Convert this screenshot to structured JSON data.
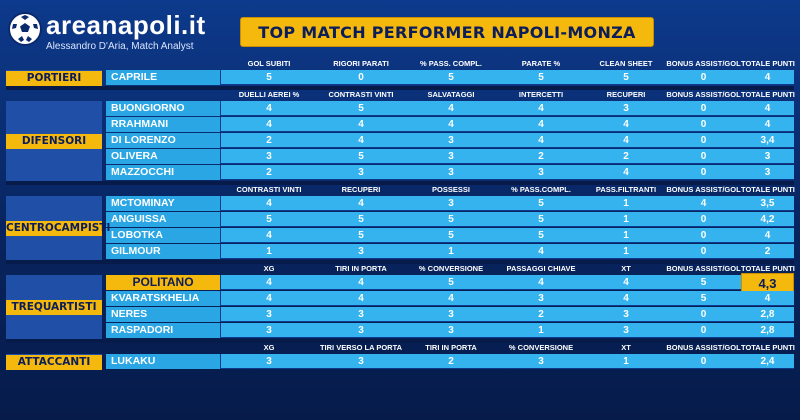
{
  "header": {
    "brand": "areanapoli.it",
    "tagline": "Alessandro D'Aria, Match Analyst",
    "title": "TOP MATCH PERFORMER NAPOLI-MONZA"
  },
  "colors": {
    "background": "#0b2a6e",
    "accent": "#f5b80c",
    "row": "#35b3ee"
  },
  "sections": [
    {
      "role": "PORTIERI",
      "columns": [
        "GOL SUBITI",
        "RIGORI PARATI",
        "% PASS. COMPL.",
        "PARATE %",
        "CLEAN SHEET",
        "BONUS ASSIST/GOL",
        "TOTALE PUNTI"
      ],
      "players": [
        {
          "name": "CAPRILE",
          "values": [
            "5",
            "0",
            "5",
            "5",
            "5",
            "0",
            "4"
          ]
        }
      ]
    },
    {
      "role": "DIFENSORI",
      "columns": [
        "DUELLI AEREI %",
        "CONTRASTI VINTI",
        "SALVATAGGI",
        "INTERCETTI",
        "RECUPERI",
        "BONUS ASSIST/GOL",
        "TOTALE PUNTI"
      ],
      "players": [
        {
          "name": "BUONGIORNO",
          "values": [
            "4",
            "5",
            "4",
            "4",
            "3",
            "0",
            "4"
          ]
        },
        {
          "name": "RRAHMANI",
          "values": [
            "4",
            "4",
            "4",
            "4",
            "4",
            "0",
            "4"
          ]
        },
        {
          "name": "DI LORENZO",
          "values": [
            "2",
            "4",
            "3",
            "4",
            "4",
            "0",
            "3,4"
          ]
        },
        {
          "name": "OLIVERA",
          "values": [
            "3",
            "5",
            "3",
            "2",
            "2",
            "0",
            "3"
          ]
        },
        {
          "name": "MAZZOCCHI",
          "values": [
            "2",
            "3",
            "3",
            "3",
            "4",
            "0",
            "3"
          ]
        }
      ]
    },
    {
      "role": "CENTROCAMPISTI",
      "columns": [
        "CONTRASTI VINTI",
        "RECUPERI",
        "POSSESSI",
        "% PASS.COMPL.",
        "PASS.FILTRANTI",
        "BONUS ASSIST/GOL",
        "TOTALE PUNTI"
      ],
      "players": [
        {
          "name": "MCTOMINAY",
          "values": [
            "4",
            "4",
            "3",
            "5",
            "1",
            "4",
            "3,5"
          ]
        },
        {
          "name": "ANGUISSA",
          "values": [
            "5",
            "5",
            "5",
            "5",
            "1",
            "0",
            "4,2"
          ]
        },
        {
          "name": "LOBOTKA",
          "values": [
            "4",
            "5",
            "5",
            "5",
            "1",
            "0",
            "4"
          ]
        },
        {
          "name": "GILMOUR",
          "values": [
            "1",
            "3",
            "1",
            "4",
            "1",
            "0",
            "2"
          ]
        }
      ]
    },
    {
      "role": "TREQUARTISTI",
      "columns": [
        "XG",
        "TIRI IN PORTA",
        "% CONVERSIONE",
        "PASSAGGI CHIAVE",
        "XT",
        "BONUS ASSIST/GOL",
        "TOTALE PUNTI"
      ],
      "players": [
        {
          "name": "POLITANO",
          "values": [
            "4",
            "4",
            "5",
            "4",
            "4",
            "5",
            "4,3"
          ],
          "highlight": true
        },
        {
          "name": "KVARATSKHELIA",
          "values": [
            "4",
            "4",
            "4",
            "3",
            "4",
            "5",
            "4"
          ]
        },
        {
          "name": "NERES",
          "values": [
            "3",
            "3",
            "3",
            "2",
            "3",
            "0",
            "2,8"
          ]
        },
        {
          "name": "RASPADORI",
          "values": [
            "3",
            "3",
            "3",
            "1",
            "3",
            "0",
            "2,8"
          ]
        }
      ]
    },
    {
      "role": "ATTACCANTI",
      "columns": [
        "XG",
        "TIRI VERSO LA PORTA",
        "TIRI IN PORTA",
        "% CONVERSIONE",
        "XT",
        "BONUS ASSIST/GOL",
        "TOTALE PUNTI"
      ],
      "players": [
        {
          "name": "LUKAKU",
          "values": [
            "3",
            "3",
            "2",
            "3",
            "1",
            "0",
            "2,4"
          ]
        }
      ]
    }
  ]
}
